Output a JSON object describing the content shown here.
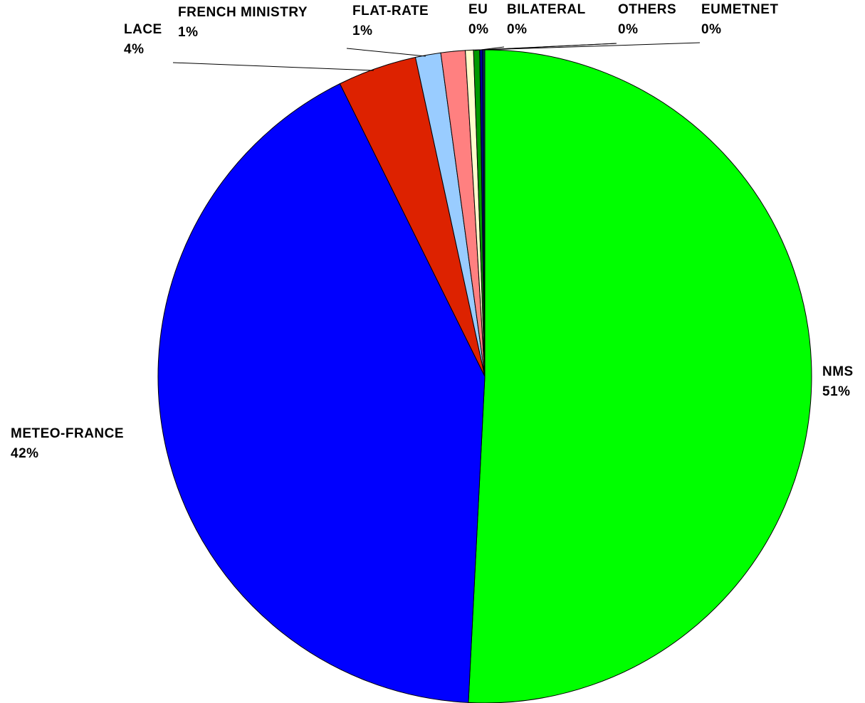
{
  "chart_data": {
    "type": "pie",
    "categories": [
      "NMS",
      "METEO-FRANCE",
      "LACE",
      "FRENCH MINISTRY",
      "FLAT-RATE",
      "EU",
      "BILATERAL",
      "OTHERS",
      "EUMETNET"
    ],
    "values": [
      50.7,
      41.8,
      3.9,
      1.25,
      1.2,
      0.4,
      0.3,
      0.15,
      0.1
    ],
    "value_labels": [
      "51%",
      "42%",
      "4%",
      "1%",
      "1%",
      "0%",
      "0%",
      "0%",
      "0%"
    ],
    "colors": [
      "#00ff00",
      "#0000ff",
      "#dd2200",
      "#99ccff",
      "#ff8080",
      "#ffffcc",
      "#009900",
      "#000099",
      "#003366"
    ]
  }
}
